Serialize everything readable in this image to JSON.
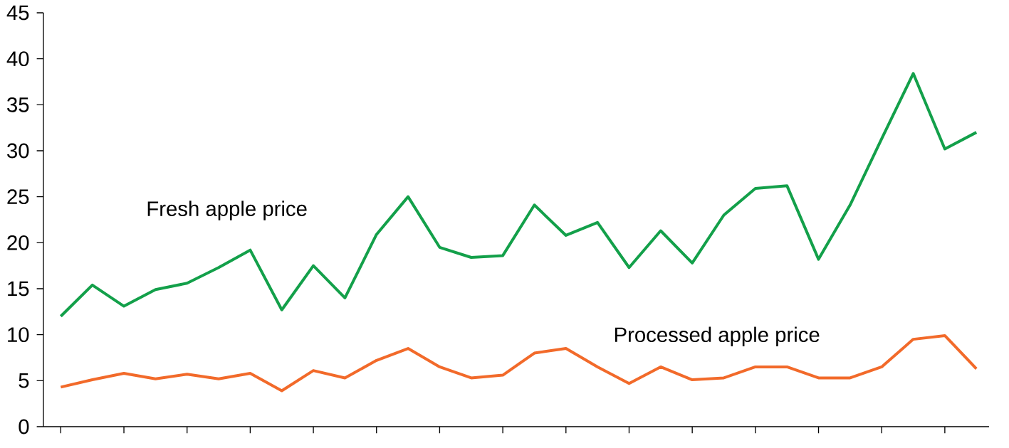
{
  "chart_data": {
    "type": "line",
    "categories": [
      null,
      null,
      null,
      null,
      null,
      null,
      null,
      null,
      null,
      null,
      null,
      null,
      null,
      null,
      null,
      null,
      null,
      null,
      null,
      null,
      null,
      null,
      null,
      null,
      null,
      null,
      null,
      null,
      null,
      null
    ],
    "series": [
      {
        "name": "Fresh apple price",
        "color": "#13a04a",
        "values": [
          12.0,
          15.4,
          13.1,
          14.9,
          15.6,
          17.3,
          19.2,
          12.7,
          17.5,
          14.0,
          20.9,
          25.0,
          19.5,
          18.4,
          18.6,
          24.1,
          20.8,
          22.2,
          17.3,
          21.3,
          17.8,
          23.0,
          25.9,
          26.2,
          18.2,
          24.1,
          31.3,
          38.4,
          30.2,
          32.0
        ]
      },
      {
        "name": "Processed apple price",
        "color": "#f26a2a",
        "values": [
          4.3,
          5.1,
          5.8,
          5.2,
          5.7,
          5.2,
          5.8,
          3.9,
          6.1,
          5.3,
          7.2,
          8.5,
          6.5,
          5.3,
          5.6,
          8.0,
          8.5,
          6.5,
          4.7,
          6.5,
          5.1,
          5.3,
          6.5,
          6.5,
          5.3,
          5.3,
          6.5,
          9.5,
          9.9,
          6.3
        ]
      }
    ],
    "ylim": [
      0,
      45
    ],
    "yticks": [
      0,
      5,
      10,
      15,
      20,
      25,
      30,
      35,
      40,
      45
    ],
    "tick_labels": "y"
  }
}
